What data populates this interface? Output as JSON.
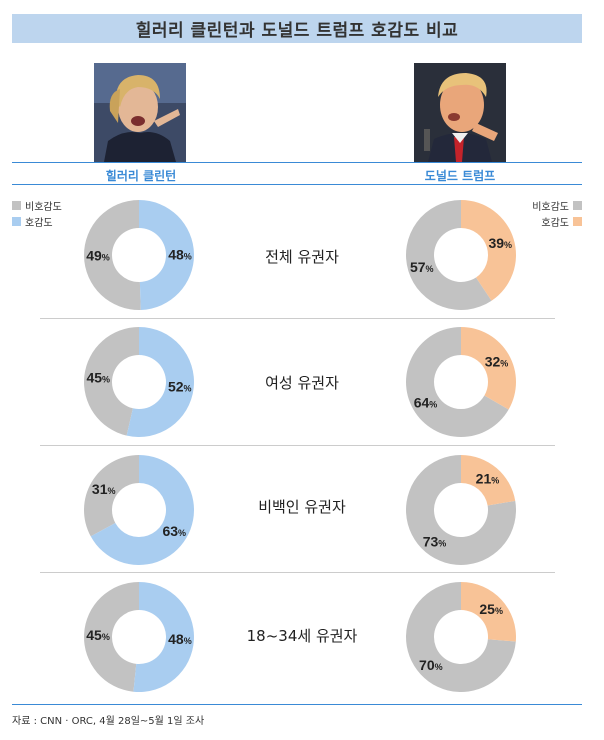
{
  "title": "힐러리 클린턴과 도널드 트럼프 호감도 비교",
  "candidates": [
    {
      "name": "힐러리 클린턴",
      "favorable_color": "#a9cdf0"
    },
    {
      "name": "도널드 트럼프",
      "favorable_color": "#f8c397"
    }
  ],
  "legend": {
    "left": [
      {
        "label": "비호감도",
        "color": "#c2c2c2"
      },
      {
        "label": "호감도",
        "color": "#a9cdf0"
      }
    ],
    "right": [
      {
        "label": "비호감도",
        "color": "#c2c2c2"
      },
      {
        "label": "호감도",
        "color": "#f8c397"
      }
    ]
  },
  "unfavorable_color": "#c2c2c2",
  "categories": [
    "전체 유권자",
    "여성 유권자",
    "비백인 유권자",
    "18~34세 유권자"
  ],
  "chart_data": [
    {
      "type": "pie",
      "candidate": "힐러리 클린턴",
      "category": "전체 유권자",
      "favorable": 48,
      "unfavorable": 49
    },
    {
      "type": "pie",
      "candidate": "도널드 트럼프",
      "category": "전체 유권자",
      "favorable": 39,
      "unfavorable": 57
    },
    {
      "type": "pie",
      "candidate": "힐러리 클린턴",
      "category": "여성 유권자",
      "favorable": 52,
      "unfavorable": 45
    },
    {
      "type": "pie",
      "candidate": "도널드 트럼프",
      "category": "여성 유권자",
      "favorable": 32,
      "unfavorable": 64
    },
    {
      "type": "pie",
      "candidate": "힐러리 클린턴",
      "category": "비백인 유권자",
      "favorable": 63,
      "unfavorable": 31
    },
    {
      "type": "pie",
      "candidate": "도널드 트럼프",
      "category": "비백인 유권자",
      "favorable": 21,
      "unfavorable": 73
    },
    {
      "type": "pie",
      "candidate": "힐러리 클린턴",
      "category": "18~34세 유권자",
      "favorable": 48,
      "unfavorable": 45
    },
    {
      "type": "pie",
      "candidate": "도널드 트럼프",
      "category": "18~34세 유권자",
      "favorable": 25,
      "unfavorable": 70
    }
  ],
  "source": "자료 : CNN · ORC, 4월 28일~5월 1일 조사"
}
